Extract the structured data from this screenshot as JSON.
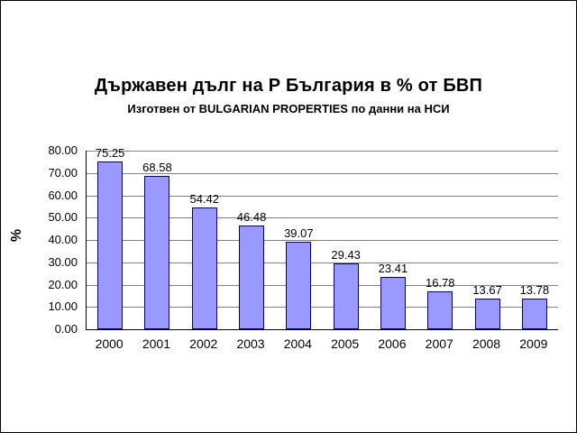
{
  "title": "Държавен дълг на Р България в % от БВП",
  "subtitle": {
    "prefix": "Изготвен от ",
    "brand": "BULGARIAN PROPERTIES",
    "suffix": " по данни на НСИ"
  },
  "chart_data": {
    "type": "bar",
    "title": "Държавен дълг на Р България в % от БВП",
    "subtitle": "Изготвен от BULGARIAN PROPERTIES по данни на НСИ",
    "categories": [
      "2000",
      "2001",
      "2002",
      "2003",
      "2004",
      "2005",
      "2006",
      "2007",
      "2008",
      "2009"
    ],
    "values": [
      75.25,
      68.58,
      54.42,
      46.48,
      39.07,
      29.43,
      23.41,
      16.78,
      13.67,
      13.78
    ],
    "value_labels": [
      "75.25",
      "68.58",
      "54.42",
      "46.48",
      "39.07",
      "29.43",
      "23.41",
      "16.78",
      "13.67",
      "13.78"
    ],
    "xlabel": "",
    "ylabel": "%",
    "ylim": [
      0,
      80
    ],
    "ytick_step": 10,
    "ytick_labels": [
      "0.00",
      "10.00",
      "20.00",
      "30.00",
      "40.00",
      "50.00",
      "60.00",
      "70.00",
      "80.00"
    ],
    "grid": true,
    "legend": "none",
    "bar_color": "#9999FF",
    "bar_border_color": "#000066",
    "gridline_color": "#808080",
    "data_labels": true
  }
}
